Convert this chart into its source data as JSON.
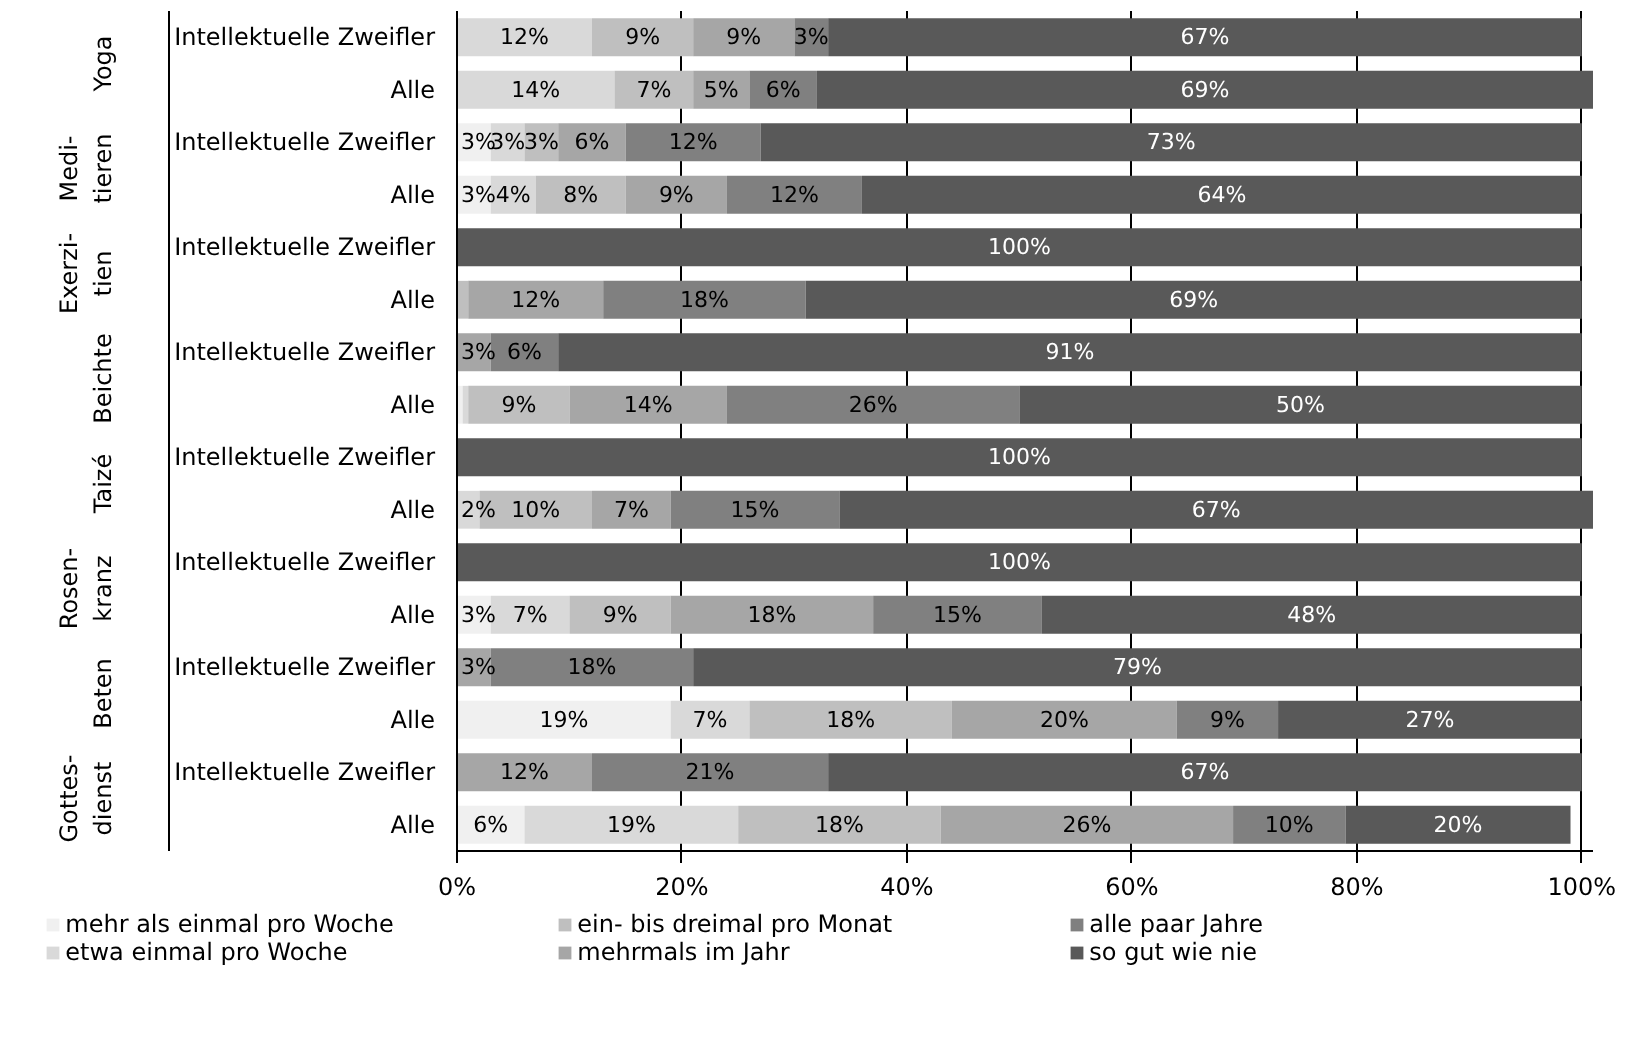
{
  "chart_data": {
    "type": "bar",
    "orientation": "horizontal",
    "stacked": true,
    "categories": [
      "Intellektuelle Zweifler",
      "Alle",
      "Intellektuelle Zweifler",
      "Alle",
      "Intellektuelle Zweifler",
      "Alle",
      "Intellektuelle Zweifler",
      "Alle",
      "Intellektuelle Zweifler",
      "Alle",
      "Intellektuelle Zweifler",
      "Alle",
      "Intellektuelle Zweifler",
      "Alle",
      "Intellektuelle Zweifler",
      "Alle"
    ],
    "annotations": [
      "Yoga",
      "Medi-\ntieren",
      "Exerzi-\ntien",
      "Beichte",
      "Taizé",
      "Rosen-\nkranz",
      "Beten",
      "Gottes-\ndienst"
    ],
    "series": [
      {
        "name": "mehr als einmal pro Woche",
        "color": "#f0f0f0",
        "values": [
          null,
          null,
          3,
          3,
          null,
          null,
          null,
          0.5,
          null,
          null,
          null,
          3,
          null,
          19,
          null,
          6
        ],
        "value_labels": [
          null,
          null,
          "3%",
          "3%",
          null,
          null,
          null,
          null,
          null,
          null,
          null,
          "3%",
          null,
          "19%",
          null,
          "6%"
        ]
      },
      {
        "name": "etwa einmal pro Woche",
        "color": "#d9d9d9",
        "values": [
          12,
          14,
          3,
          4,
          null,
          null,
          null,
          0.5,
          null,
          2,
          null,
          7,
          null,
          7,
          null,
          19
        ],
        "value_labels": [
          "12%",
          "14%",
          "3%",
          "4%",
          null,
          null,
          null,
          null,
          null,
          "2%",
          null,
          "7%",
          null,
          "7%",
          null,
          "19%"
        ]
      },
      {
        "name": "ein- bis dreimal pro Monat",
        "color": "#bfbfbf",
        "values": [
          9,
          7,
          3,
          8,
          null,
          1,
          null,
          9,
          null,
          10,
          null,
          9,
          null,
          18,
          null,
          18
        ],
        "value_labels": [
          "9%",
          "7%",
          "3%",
          "8%",
          null,
          null,
          null,
          "9%",
          null,
          "10%",
          null,
          "9%",
          null,
          "18%",
          null,
          "18%"
        ]
      },
      {
        "name": "mehrmals im Jahr",
        "color": "#a6a6a6",
        "values": [
          9,
          5,
          6,
          9,
          null,
          12,
          3,
          14,
          null,
          7,
          null,
          18,
          3,
          20,
          12,
          26
        ],
        "value_labels": [
          "9%",
          "5%",
          "6%",
          "9%",
          null,
          "12%",
          "3%",
          "14%",
          null,
          "7%",
          null,
          "18%",
          "3%",
          "20%",
          "12%",
          "26%"
        ]
      },
      {
        "name": "alle paar Jahre",
        "color": "#808080",
        "values": [
          3,
          6,
          12,
          12,
          null,
          18,
          6,
          26,
          null,
          15,
          null,
          15,
          18,
          9,
          21,
          10
        ],
        "value_labels": [
          "3%",
          "6%",
          "12%",
          "12%",
          null,
          "18%",
          "6%",
          "26%",
          null,
          "15%",
          null,
          "15%",
          "18%",
          "9%",
          "21%",
          "10%"
        ]
      },
      {
        "name": "so gut wie nie",
        "color": "#595959",
        "values": [
          67,
          69,
          73,
          64,
          100,
          69,
          91,
          50,
          100,
          67,
          100,
          48,
          79,
          27,
          67,
          20
        ],
        "value_labels": [
          "67%",
          "69%",
          "73%",
          "64%",
          "100%",
          "69%",
          "91%",
          "50%",
          "100%",
          "67%",
          "100%",
          "48%",
          "79%",
          "27%",
          "67%",
          "20%"
        ]
      }
    ],
    "xlim": [
      0,
      101
    ],
    "xticks": [
      {
        "value": 0,
        "label": "0%"
      },
      {
        "value": 20,
        "label": "20%"
      },
      {
        "value": 40,
        "label": "40%"
      },
      {
        "value": 60,
        "label": "60%"
      },
      {
        "value": 80,
        "label": "80%"
      },
      {
        "value": 100,
        "label": "100%"
      }
    ],
    "grid": "x",
    "legend": "bottom"
  }
}
